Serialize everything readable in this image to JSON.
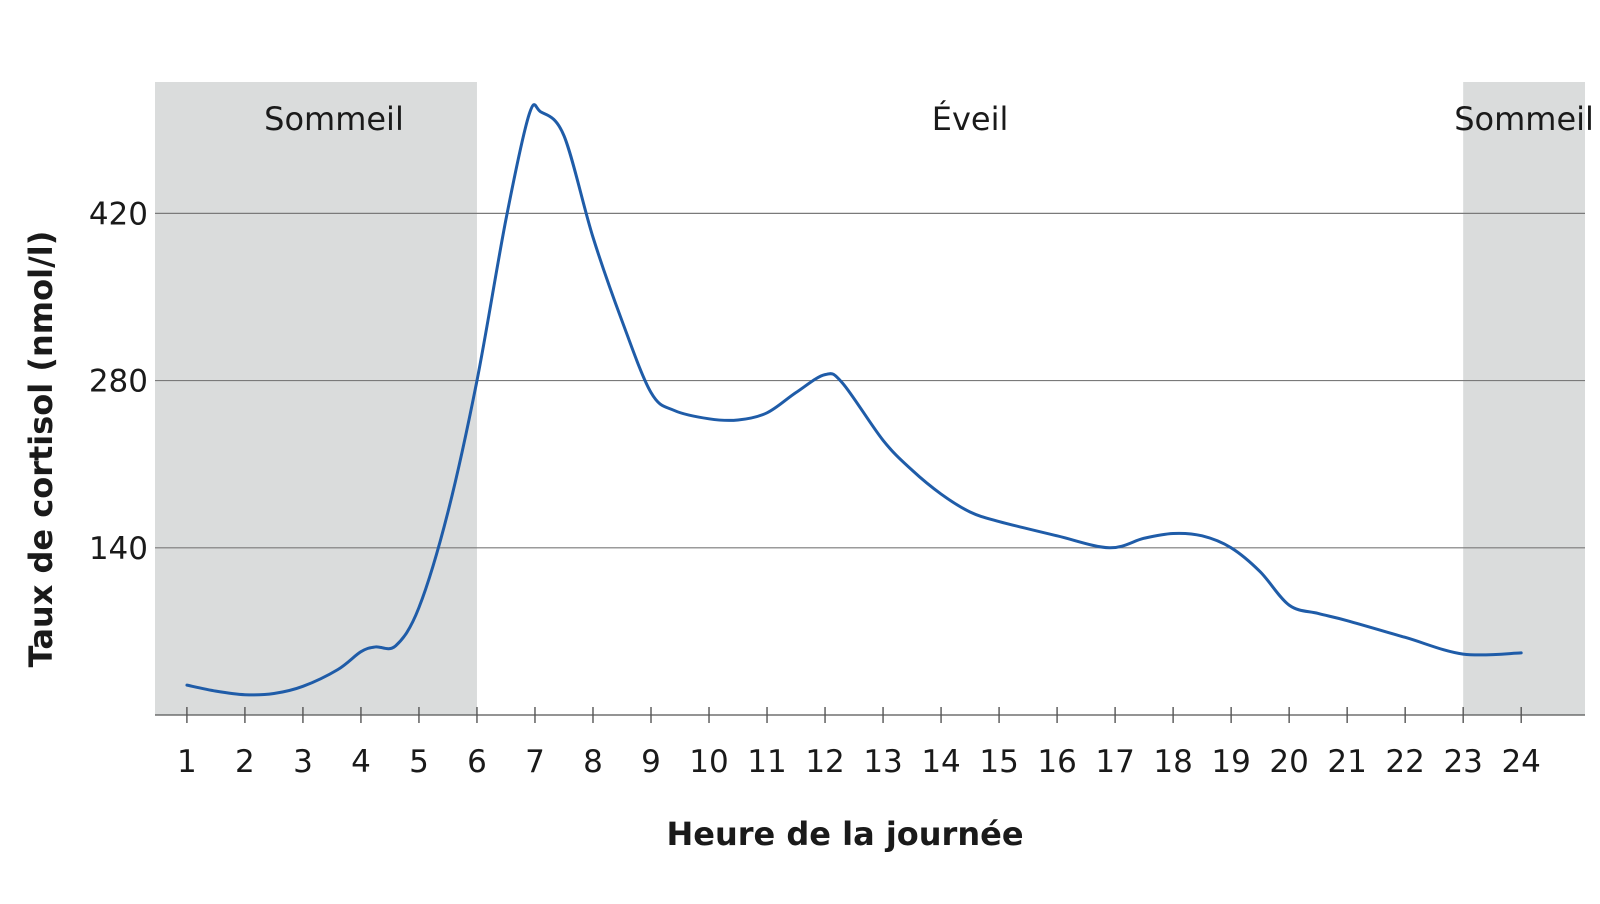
{
  "chart_data": {
    "type": "line",
    "title": "",
    "xlabel": "Heure de la journée",
    "ylabel": "Taux de cortisol (nmol/l)",
    "xlim": [
      0.45,
      25.1
    ],
    "ylim": [
      0,
      530
    ],
    "x_ticks": [
      "1",
      "2",
      "3",
      "4",
      "5",
      "6",
      "7",
      "8",
      "9",
      "10",
      "11",
      "12",
      "13",
      "14",
      "15",
      "16",
      "17",
      "18",
      "19",
      "20",
      "21",
      "22",
      "23",
      "24"
    ],
    "y_ticks": [
      140,
      280,
      420
    ],
    "grid": "horizontal",
    "line_color": "#1f5ca8",
    "shade_color": "#dadcdc",
    "regions": [
      {
        "label": "Sommeil",
        "from": 0.45,
        "to": 6,
        "shaded": true
      },
      {
        "label": "Éveil",
        "from": 6,
        "to": 23,
        "shaded": false
      },
      {
        "label": "Sommeil",
        "from": 23,
        "to": 25.1,
        "shaded": true
      }
    ],
    "series": [
      {
        "points": [
          [
            1,
            25
          ],
          [
            1.5,
            20
          ],
          [
            2,
            17
          ],
          [
            2.5,
            18
          ],
          [
            3,
            24
          ],
          [
            3.6,
            38
          ],
          [
            4,
            53
          ],
          [
            4.25,
            57
          ],
          [
            4.6,
            58
          ],
          [
            5,
            90
          ],
          [
            5.5,
            170
          ],
          [
            6,
            280
          ],
          [
            6.5,
            415
          ],
          [
            6.9,
            503
          ],
          [
            7.1,
            505
          ],
          [
            7.5,
            485
          ],
          [
            8,
            400
          ],
          [
            8.5,
            330
          ],
          [
            9,
            270
          ],
          [
            9.4,
            255
          ],
          [
            10,
            248
          ],
          [
            10.5,
            247
          ],
          [
            11,
            253
          ],
          [
            11.5,
            270
          ],
          [
            12,
            285
          ],
          [
            12.3,
            278
          ],
          [
            13,
            230
          ],
          [
            13.5,
            205
          ],
          [
            14,
            185
          ],
          [
            14.5,
            170
          ],
          [
            15,
            162
          ],
          [
            16,
            150
          ],
          [
            16.9,
            140
          ],
          [
            17.5,
            148
          ],
          [
            18,
            152
          ],
          [
            18.5,
            150
          ],
          [
            19,
            140
          ],
          [
            19.5,
            120
          ],
          [
            20,
            92
          ],
          [
            20.5,
            85
          ],
          [
            21,
            79
          ],
          [
            22,
            65
          ],
          [
            23,
            51
          ],
          [
            24,
            52
          ]
        ]
      }
    ]
  }
}
